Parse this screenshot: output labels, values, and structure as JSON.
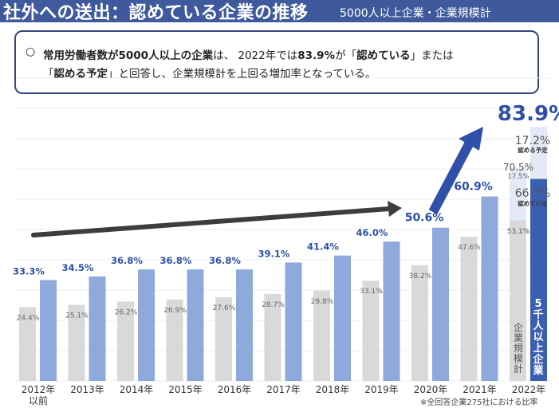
{
  "header": {
    "title": "社外への送出：認めている企業の推移",
    "subtitle": "5000人以上企業・企業規模計"
  },
  "callout": {
    "marker": "○",
    "line1": {
      "p1": "常用労働者数が5000人以上の企業",
      "p2": "は、 2022年では",
      "p3": "83.9%",
      "p4": "が「",
      "p5": "認めている",
      "p6": "」または"
    },
    "line2": {
      "p1": "「",
      "p2": "認める予定",
      "p3": "」と回答し、企業規模計を上回る増加率となっている。"
    }
  },
  "colors": {
    "header_bg": "#3f5a9c",
    "large": "#8fa9dc",
    "large_2022": "#3a5fb0",
    "planned": "#e3e9f6",
    "all_sizes": "#d9d9d9",
    "value_label": "#2f4fa8",
    "trend_arrow": "#3d3d3d",
    "highlight_arrow": "#2f4fa8"
  },
  "chart_data": {
    "type": "bar",
    "categories": [
      "2012年\n以前",
      "2013年",
      "2014年",
      "2015年",
      "2016年",
      "2017年",
      "2018年",
      "2019年",
      "2020年",
      "2021年",
      "2022年"
    ],
    "series": [
      {
        "name": "企業規模計",
        "values": [
          24.4,
          25.1,
          26.2,
          26.9,
          27.6,
          28.7,
          29.8,
          33.1,
          38.2,
          47.6,
          53.1
        ],
        "labels": [
          "24.4%",
          "25.1%",
          "26.2%",
          "26.9%",
          "27.6%",
          "28.7%",
          "29.8%",
          "33.1%",
          "38.2%",
          "47.6%",
          "53.1%"
        ]
      },
      {
        "name": "5千人以上企業",
        "values": [
          33.3,
          34.5,
          36.8,
          36.8,
          36.8,
          39.1,
          41.4,
          46.0,
          50.6,
          60.9,
          66.7
        ],
        "labels": [
          "33.3%",
          "34.5%",
          "36.8%",
          "36.8%",
          "36.8%",
          "39.1%",
          "41.4%",
          "46.0%",
          "50.6%",
          "60.9%",
          "66.7%"
        ]
      }
    ],
    "stack_2022": {
      "all_sizes_planned": 17.5,
      "all_sizes_total": 70.5,
      "large_planned": 17.2,
      "large_total": 83.9
    },
    "annotations": {
      "total_large": "83.9%",
      "planned_value": "17.2%",
      "planned_label": "認める予定",
      "total_all": "70.5%",
      "planned_all": "17.5%",
      "approved_value": "66.7%",
      "approved_label": "認めている",
      "series_label_large": "5千人以上企業",
      "series_label_all": "企業規模計"
    },
    "ylim": [
      0,
      100
    ],
    "grid": true,
    "footnote": "※全回答企業275社における比率"
  }
}
